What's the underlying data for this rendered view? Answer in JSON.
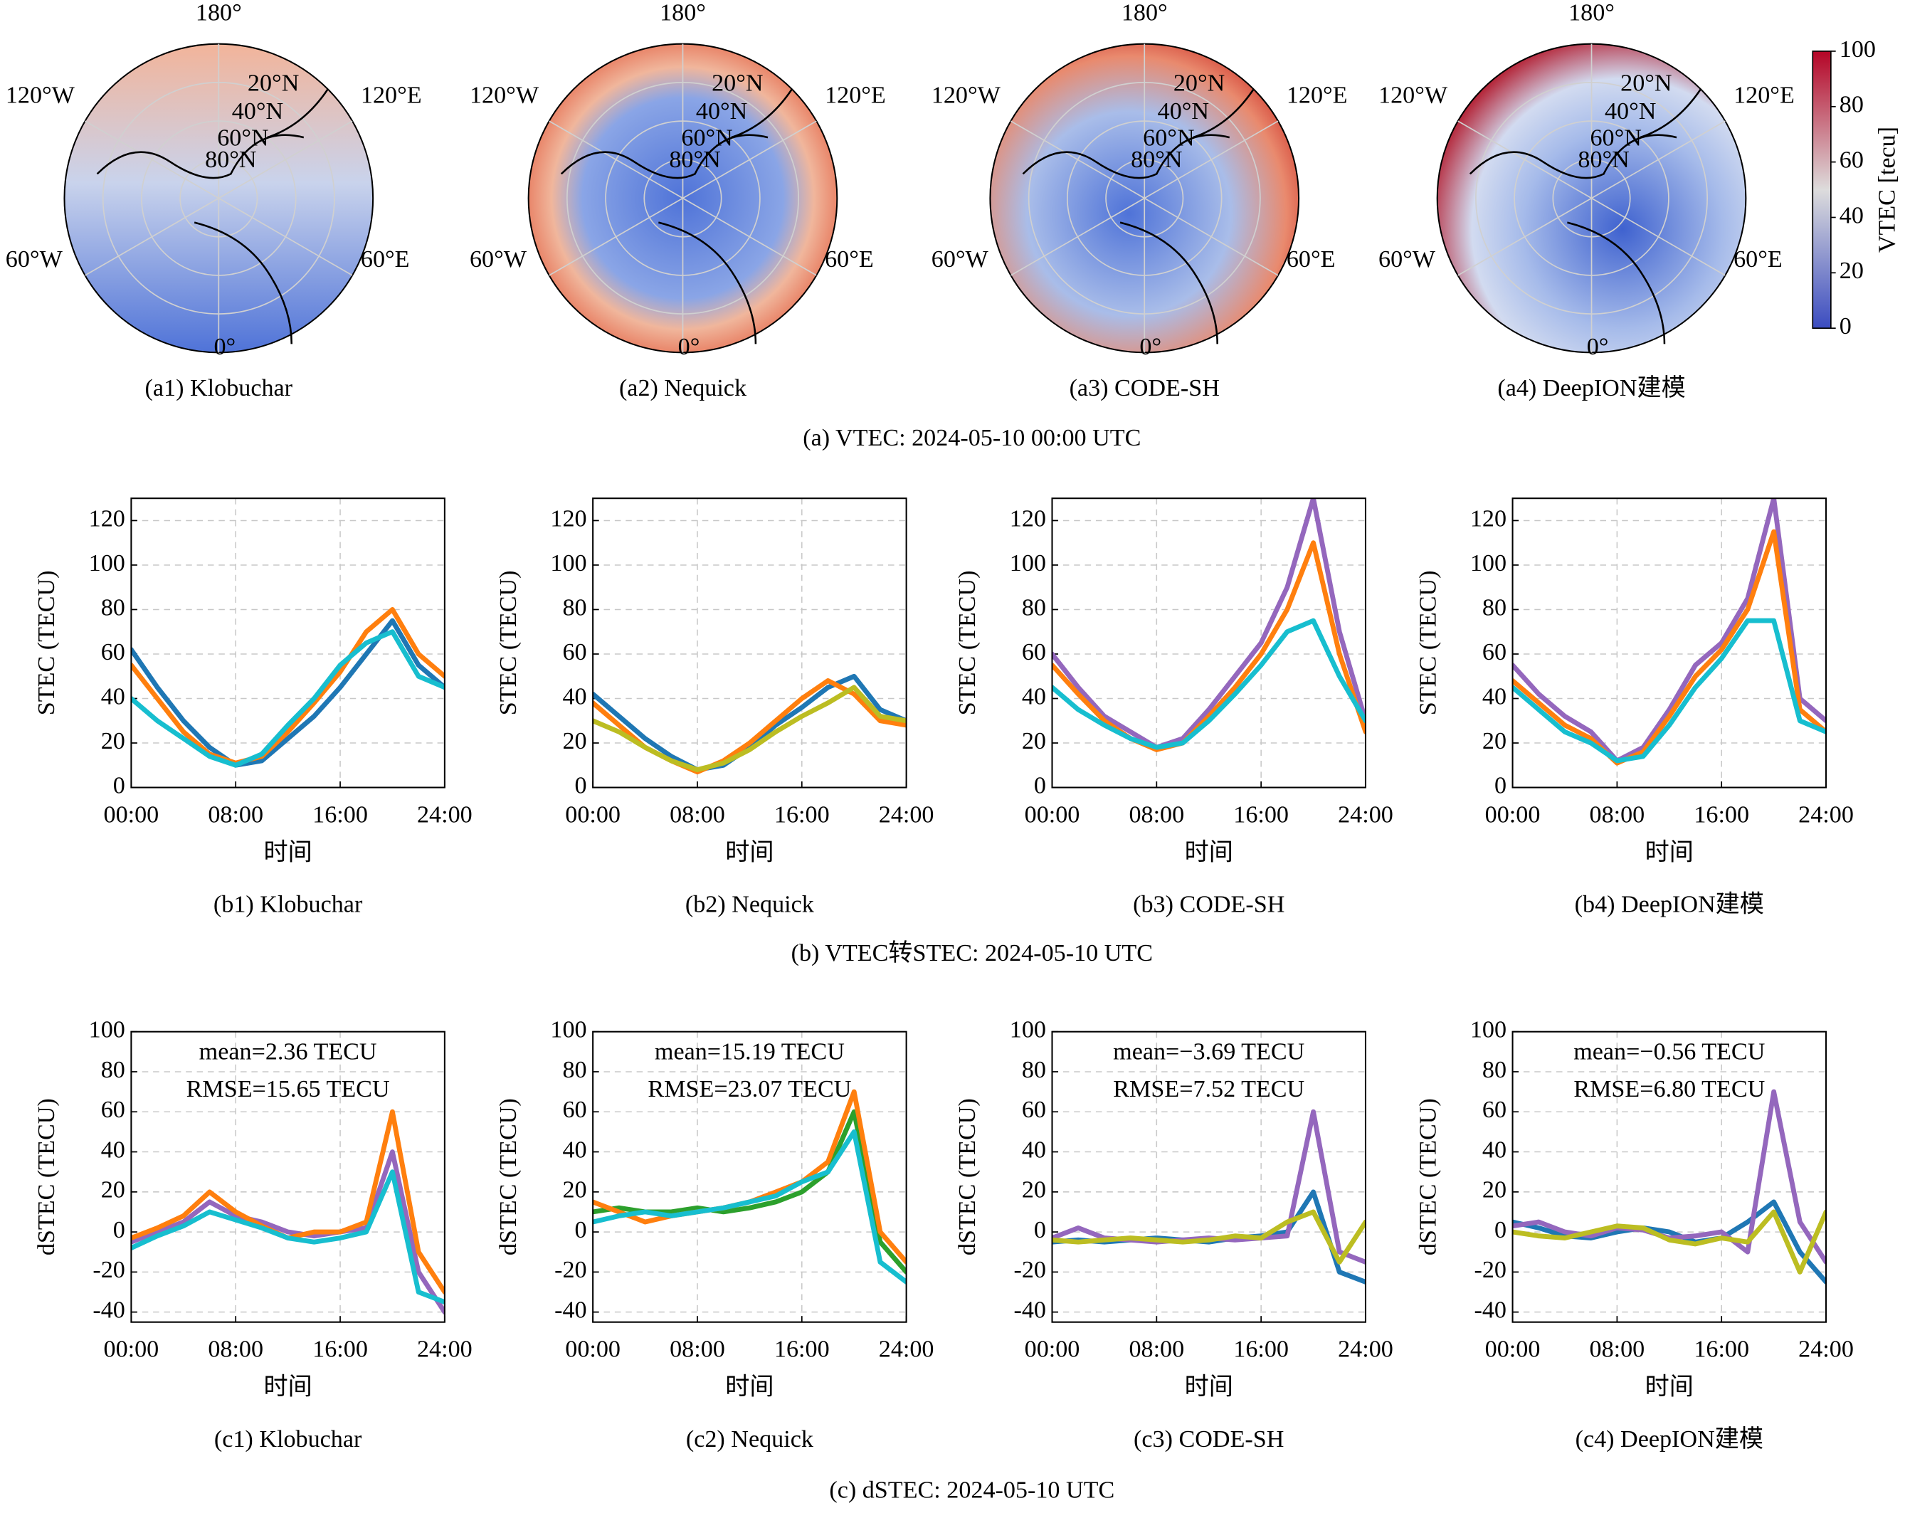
{
  "maps": {
    "title": "(a) VTEC: 2024-05-10 00:00 UTC",
    "panels": [
      "(a1) Klobuchar",
      "(a2) Nequick",
      "(a3) CODE-SH",
      "(a4) DeepION建模"
    ],
    "lon_labels": [
      "180°",
      "120°E",
      "60°E",
      "0°",
      "60°W",
      "120°W"
    ],
    "lat_labels": [
      "20°N",
      "40°N",
      "60°N",
      "80°N"
    ],
    "colorbar": {
      "label": "VTEC [tecu]",
      "lim": [
        0,
        100
      ],
      "ticks": [
        0,
        20,
        40,
        60,
        80,
        100
      ]
    }
  },
  "section_titles": [
    "(b) VTEC转STEC: 2024-05-10 UTC",
    "(c) dSTEC: 2024-05-10 UTC"
  ],
  "chart_data": [
    {
      "type": "line",
      "caption": "(b1) Klobuchar",
      "xlabel": "时间",
      "ylabel": "STEC (TECU)",
      "x": [
        0,
        2,
        4,
        6,
        8,
        10,
        12,
        14,
        16,
        18,
        20,
        22,
        24
      ],
      "xlim": [
        0,
        24
      ],
      "xticks": [
        {
          "value": 0,
          "label": "00:00"
        },
        {
          "value": 8,
          "label": "08:00"
        },
        {
          "value": 16,
          "label": "16:00"
        },
        {
          "value": 24,
          "label": "24:00"
        }
      ],
      "ylim": [
        0,
        130
      ],
      "yticks": [
        0,
        20,
        40,
        60,
        80,
        100,
        120
      ],
      "grid": true,
      "series": [
        {
          "color": "#1f77b4",
          "values": [
            62,
            45,
            30,
            18,
            10,
            12,
            22,
            32,
            45,
            60,
            75,
            55,
            45
          ]
        },
        {
          "color": "#ff7f0e",
          "values": [
            55,
            40,
            25,
            15,
            11,
            14,
            25,
            38,
            52,
            70,
            80,
            60,
            50
          ]
        },
        {
          "color": "#17becf",
          "values": [
            40,
            30,
            22,
            14,
            10,
            15,
            28,
            40,
            55,
            65,
            70,
            50,
            45
          ]
        }
      ]
    },
    {
      "type": "line",
      "caption": "(b2) Nequick",
      "xlabel": "时间",
      "ylabel": "STEC (TECU)",
      "x": [
        0,
        2,
        4,
        6,
        8,
        10,
        12,
        14,
        16,
        18,
        20,
        22,
        24
      ],
      "xlim": [
        0,
        24
      ],
      "xticks": [
        {
          "value": 0,
          "label": "00:00"
        },
        {
          "value": 8,
          "label": "08:00"
        },
        {
          "value": 16,
          "label": "16:00"
        },
        {
          "value": 24,
          "label": "24:00"
        }
      ],
      "ylim": [
        0,
        130
      ],
      "yticks": [
        0,
        20,
        40,
        60,
        80,
        100,
        120
      ],
      "grid": true,
      "series": [
        {
          "color": "#1f77b4",
          "values": [
            42,
            32,
            22,
            14,
            8,
            10,
            18,
            28,
            36,
            45,
            50,
            35,
            30
          ]
        },
        {
          "color": "#ff7f0e",
          "values": [
            38,
            28,
            18,
            12,
            7,
            12,
            20,
            30,
            40,
            48,
            42,
            30,
            28
          ]
        },
        {
          "color": "#bcbd22",
          "values": [
            30,
            25,
            18,
            12,
            8,
            11,
            17,
            25,
            32,
            38,
            45,
            32,
            30
          ]
        }
      ]
    },
    {
      "type": "line",
      "caption": "(b3) CODE-SH",
      "xlabel": "时间",
      "ylabel": "STEC (TECU)",
      "x": [
        0,
        2,
        4,
        6,
        8,
        10,
        12,
        14,
        16,
        18,
        20,
        22,
        24
      ],
      "xlim": [
        0,
        24
      ],
      "xticks": [
        {
          "value": 0,
          "label": "00:00"
        },
        {
          "value": 8,
          "label": "08:00"
        },
        {
          "value": 16,
          "label": "16:00"
        },
        {
          "value": 24,
          "label": "24:00"
        }
      ],
      "ylim": [
        0,
        130
      ],
      "yticks": [
        0,
        20,
        40,
        60,
        80,
        100,
        120
      ],
      "grid": true,
      "series": [
        {
          "color": "#9467bd",
          "values": [
            60,
            45,
            32,
            25,
            18,
            22,
            35,
            50,
            65,
            90,
            130,
            70,
            30
          ]
        },
        {
          "color": "#ff7f0e",
          "values": [
            55,
            42,
            30,
            22,
            17,
            20,
            32,
            45,
            60,
            80,
            110,
            60,
            25
          ]
        },
        {
          "color": "#17becf",
          "values": [
            45,
            35,
            28,
            22,
            18,
            20,
            30,
            42,
            55,
            70,
            75,
            50,
            30
          ]
        }
      ]
    },
    {
      "type": "line",
      "caption": "(b4) DeepION建模",
      "xlabel": "时间",
      "ylabel": "STEC (TECU)",
      "x": [
        0,
        2,
        4,
        6,
        8,
        10,
        12,
        14,
        16,
        18,
        20,
        22,
        24
      ],
      "xlim": [
        0,
        24
      ],
      "xticks": [
        {
          "value": 0,
          "label": "00:00"
        },
        {
          "value": 8,
          "label": "08:00"
        },
        {
          "value": 16,
          "label": "16:00"
        },
        {
          "value": 24,
          "label": "24:00"
        }
      ],
      "ylim": [
        0,
        130
      ],
      "yticks": [
        0,
        20,
        40,
        60,
        80,
        100,
        120
      ],
      "grid": true,
      "series": [
        {
          "color": "#9467bd",
          "values": [
            55,
            42,
            32,
            25,
            12,
            18,
            35,
            55,
            65,
            85,
            130,
            40,
            30
          ]
        },
        {
          "color": "#ff7f0e",
          "values": [
            48,
            38,
            28,
            22,
            11,
            16,
            32,
            50,
            62,
            80,
            115,
            35,
            25
          ]
        },
        {
          "color": "#17becf",
          "values": [
            45,
            35,
            25,
            20,
            12,
            14,
            28,
            45,
            58,
            75,
            75,
            30,
            25
          ]
        }
      ]
    },
    {
      "type": "line",
      "caption": "(c1) Klobuchar",
      "xlabel": "时间",
      "ylabel": "dSTEC (TECU)",
      "annotations": [
        "mean=2.36 TECU",
        "RMSE=15.65 TECU"
      ],
      "x": [
        0,
        2,
        4,
        6,
        8,
        10,
        12,
        14,
        16,
        18,
        20,
        22,
        24
      ],
      "xlim": [
        0,
        24
      ],
      "xticks": [
        {
          "value": 0,
          "label": "00:00"
        },
        {
          "value": 8,
          "label": "08:00"
        },
        {
          "value": 16,
          "label": "16:00"
        },
        {
          "value": 24,
          "label": "24:00"
        }
      ],
      "ylim": [
        -45,
        100
      ],
      "yticks": [
        -40,
        -20,
        0,
        20,
        40,
        60,
        80,
        100
      ],
      "grid": true,
      "series": [
        {
          "color": "#9467bd",
          "values": [
            -5,
            0,
            5,
            15,
            8,
            5,
            0,
            -2,
            0,
            2,
            40,
            -20,
            -40
          ]
        },
        {
          "color": "#ff7f0e",
          "values": [
            -3,
            2,
            8,
            20,
            10,
            3,
            -3,
            0,
            0,
            5,
            60,
            -10,
            -30
          ]
        },
        {
          "color": "#17becf",
          "values": [
            -8,
            -2,
            3,
            10,
            6,
            2,
            -3,
            -5,
            -3,
            0,
            30,
            -30,
            -35
          ]
        }
      ]
    },
    {
      "type": "line",
      "caption": "(c2) Nequick",
      "xlabel": "时间",
      "ylabel": "dSTEC (TECU)",
      "annotations": [
        "mean=15.19 TECU",
        "RMSE=23.07 TECU"
      ],
      "x": [
        0,
        2,
        4,
        6,
        8,
        10,
        12,
        14,
        16,
        18,
        20,
        22,
        24
      ],
      "xlim": [
        0,
        24
      ],
      "xticks": [
        {
          "value": 0,
          "label": "00:00"
        },
        {
          "value": 8,
          "label": "08:00"
        },
        {
          "value": 16,
          "label": "16:00"
        },
        {
          "value": 24,
          "label": "24:00"
        }
      ],
      "ylim": [
        -45,
        100
      ],
      "yticks": [
        -40,
        -20,
        0,
        20,
        40,
        60,
        80,
        100
      ],
      "grid": true,
      "series": [
        {
          "color": "#2ca02c",
          "values": [
            10,
            12,
            10,
            10,
            12,
            10,
            12,
            15,
            20,
            30,
            60,
            -5,
            -20
          ]
        },
        {
          "color": "#ff7f0e",
          "values": [
            15,
            10,
            5,
            8,
            10,
            12,
            15,
            20,
            25,
            35,
            70,
            0,
            -15
          ]
        },
        {
          "color": "#17becf",
          "values": [
            5,
            8,
            10,
            8,
            10,
            12,
            15,
            18,
            25,
            30,
            50,
            -15,
            -25
          ]
        }
      ]
    },
    {
      "type": "line",
      "caption": "(c3) CODE-SH",
      "xlabel": "时间",
      "ylabel": "dSTEC (TECU)",
      "annotations": [
        "mean=−3.69 TECU",
        "RMSE=7.52 TECU"
      ],
      "x": [
        0,
        2,
        4,
        6,
        8,
        10,
        12,
        14,
        16,
        18,
        20,
        22,
        24
      ],
      "xlim": [
        0,
        24
      ],
      "xticks": [
        {
          "value": 0,
          "label": "00:00"
        },
        {
          "value": 8,
          "label": "08:00"
        },
        {
          "value": 16,
          "label": "16:00"
        },
        {
          "value": 24,
          "label": "24:00"
        }
      ],
      "ylim": [
        -45,
        100
      ],
      "yticks": [
        -40,
        -20,
        0,
        20,
        40,
        60,
        80,
        100
      ],
      "grid": true,
      "series": [
        {
          "color": "#1f77b4",
          "values": [
            -5,
            -4,
            -5,
            -4,
            -3,
            -4,
            -5,
            -3,
            -2,
            0,
            20,
            -20,
            -25
          ]
        },
        {
          "color": "#9467bd",
          "values": [
            -3,
            2,
            -3,
            -4,
            -5,
            -4,
            -3,
            -4,
            -3,
            -2,
            60,
            -10,
            -15
          ]
        },
        {
          "color": "#bcbd22",
          "values": [
            -4,
            -5,
            -4,
            -3,
            -4,
            -5,
            -4,
            -2,
            -3,
            5,
            10,
            -15,
            5
          ]
        }
      ]
    },
    {
      "type": "line",
      "caption": "(c4) DeepION建模",
      "xlabel": "时间",
      "ylabel": "dSTEC (TECU)",
      "annotations": [
        "mean=−0.56 TECU",
        "RMSE=6.80 TECU"
      ],
      "x": [
        0,
        2,
        4,
        6,
        8,
        10,
        12,
        14,
        16,
        18,
        20,
        22,
        24
      ],
      "xlim": [
        0,
        24
      ],
      "xticks": [
        {
          "value": 0,
          "label": "00:00"
        },
        {
          "value": 8,
          "label": "08:00"
        },
        {
          "value": 16,
          "label": "16:00"
        },
        {
          "value": 24,
          "label": "24:00"
        }
      ],
      "ylim": [
        -45,
        100
      ],
      "yticks": [
        -40,
        -20,
        0,
        20,
        40,
        60,
        80,
        100
      ],
      "grid": true,
      "series": [
        {
          "color": "#1f77b4",
          "values": [
            5,
            2,
            -2,
            -3,
            0,
            2,
            0,
            -5,
            -3,
            5,
            15,
            -10,
            -25
          ]
        },
        {
          "color": "#9467bd",
          "values": [
            3,
            5,
            0,
            -2,
            2,
            1,
            -3,
            -2,
            0,
            -10,
            70,
            5,
            -15
          ]
        },
        {
          "color": "#bcbd22",
          "values": [
            0,
            -2,
            -3,
            0,
            3,
            2,
            -4,
            -6,
            -3,
            -5,
            10,
            -20,
            10
          ]
        }
      ]
    }
  ]
}
